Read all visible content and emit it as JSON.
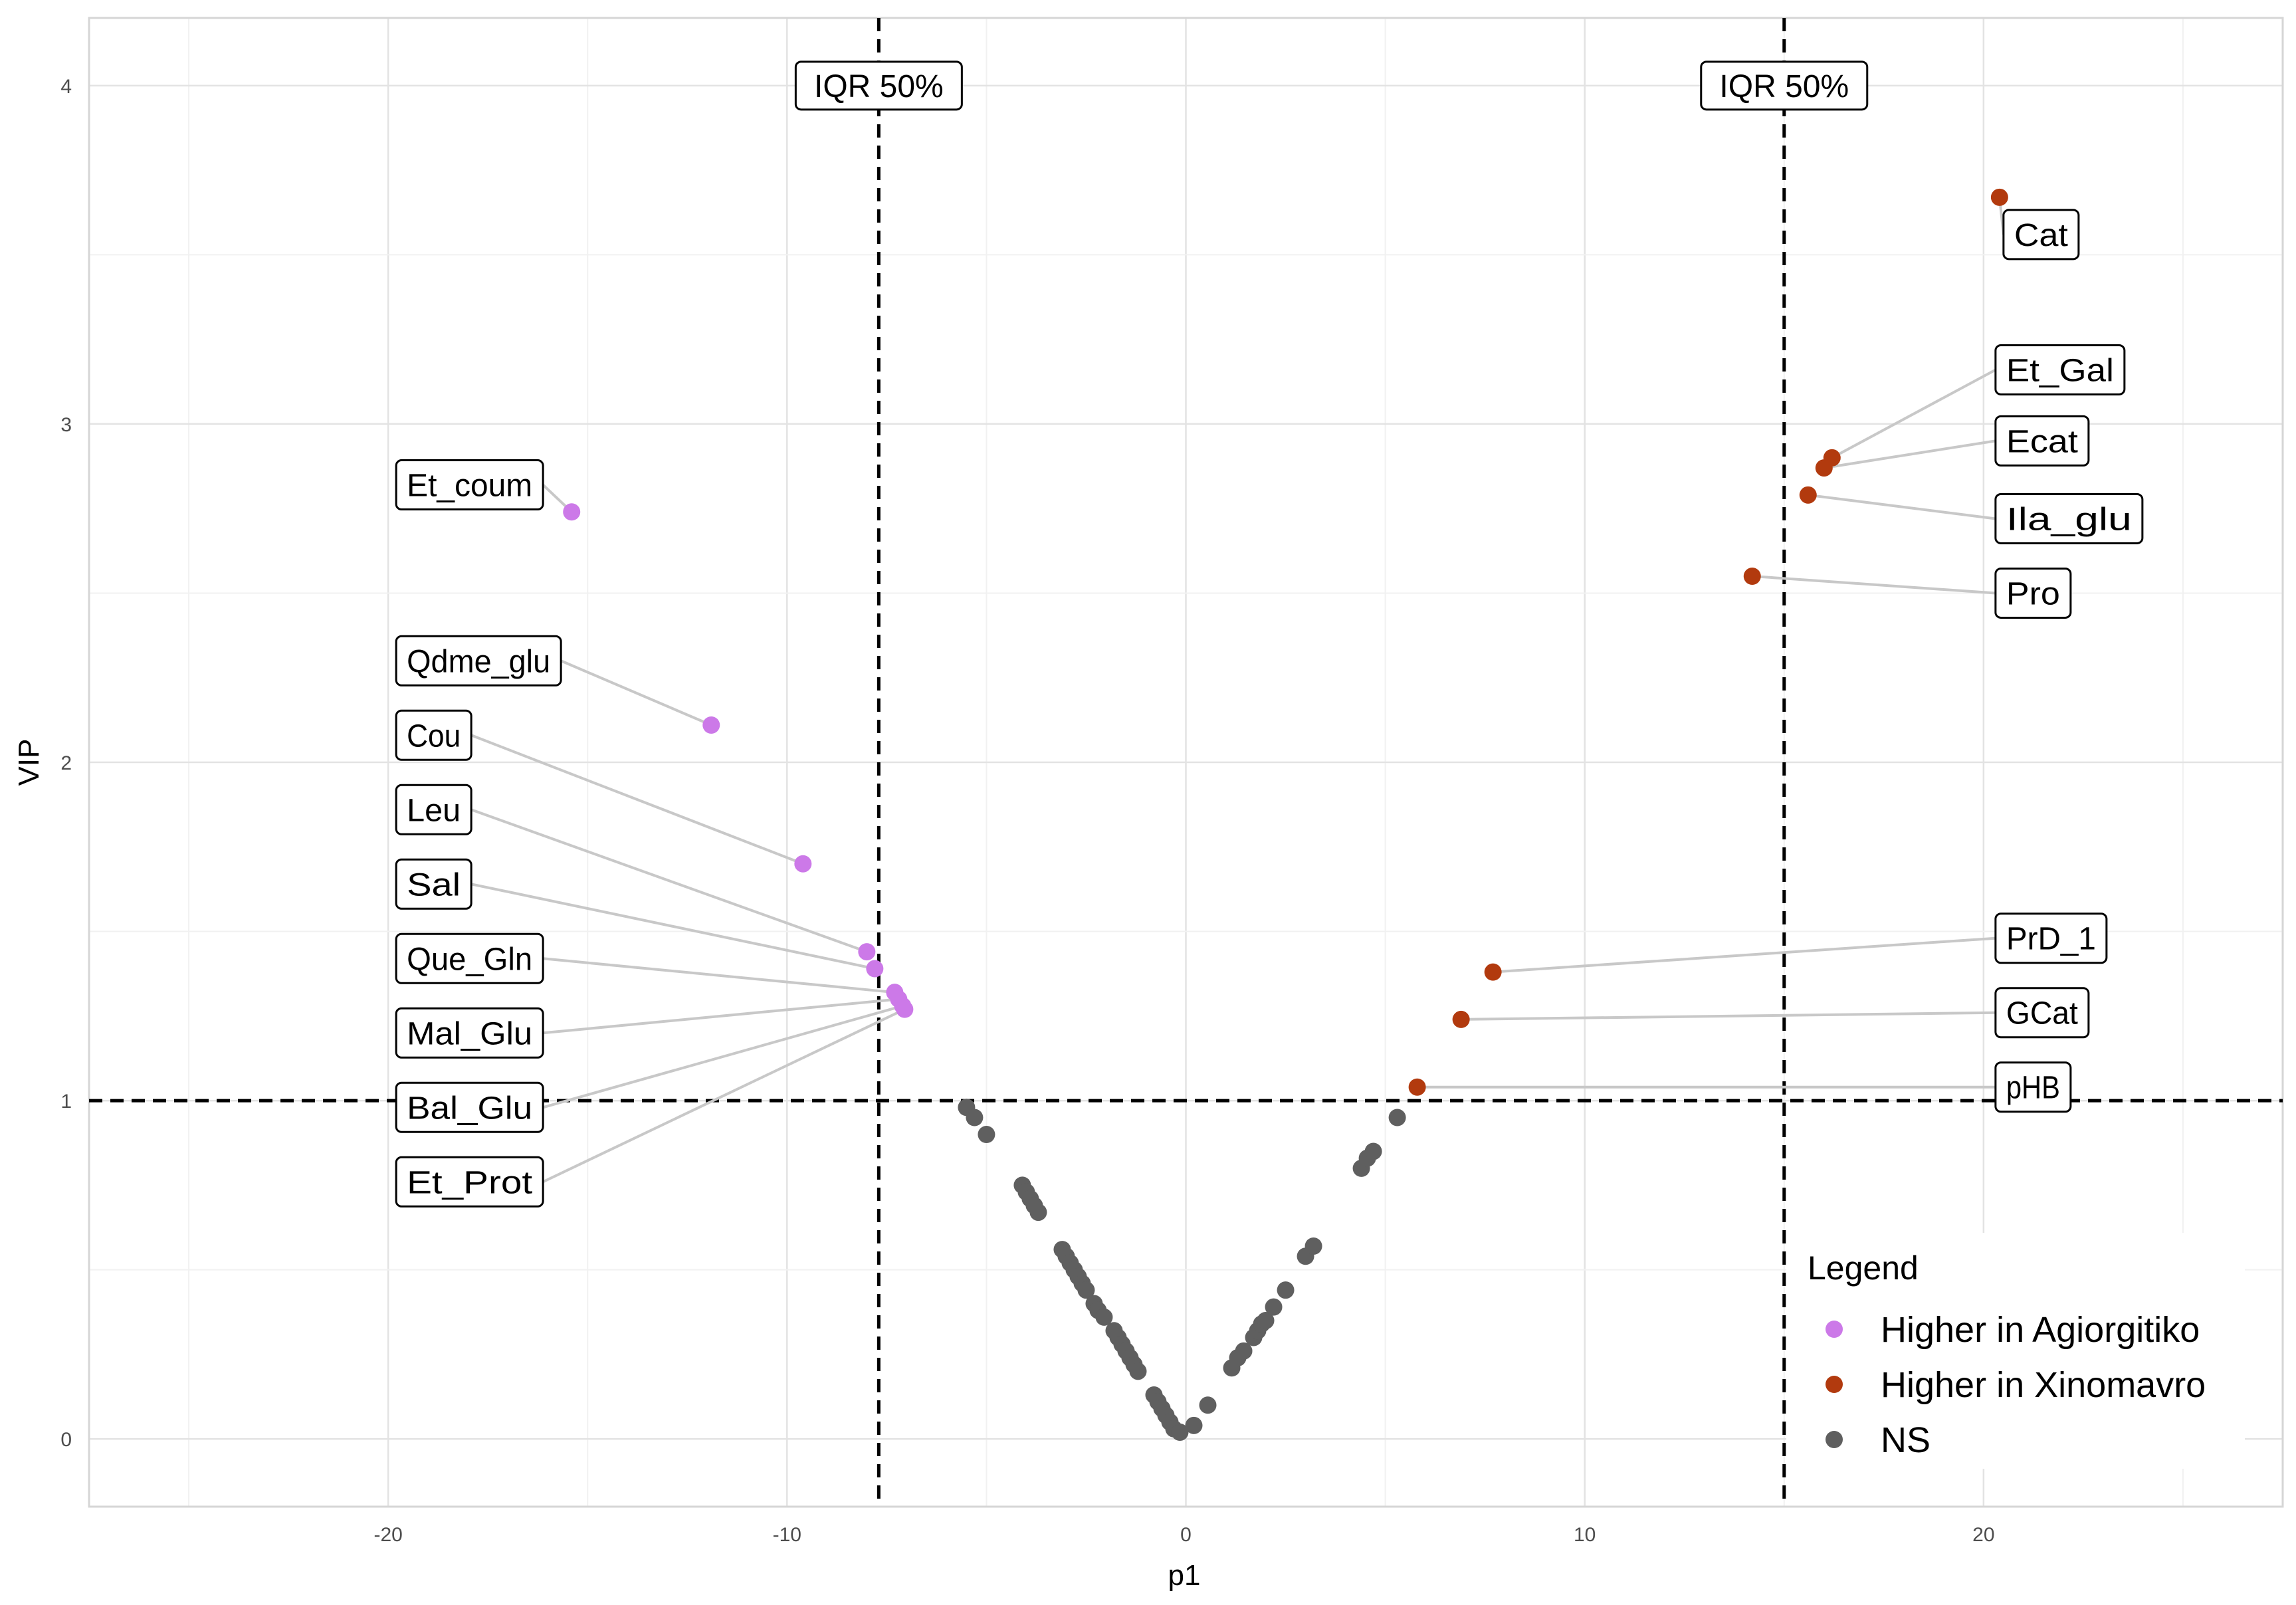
{
  "chart_data": {
    "type": "scatter",
    "title": "",
    "xlabel": "p1",
    "ylabel": "VIP",
    "xlim": [
      -27.5,
      27.5
    ],
    "ylim": [
      -0.2,
      4.2
    ],
    "x_ticks": [
      -20,
      -10,
      0,
      10,
      20
    ],
    "y_ticks": [
      0,
      1,
      2,
      3,
      4
    ],
    "grid": true,
    "thresholds": {
      "vip": 1,
      "iqr_low": -7.7,
      "iqr_high": 15.0,
      "iqr_label": "IQR 50%"
    },
    "legend": {
      "title": "Legend",
      "position": "bottom-right",
      "entries": [
        {
          "name": "Higher in Agiorgitiko",
          "color": "#CC79E8"
        },
        {
          "name": "Higher in Xinomavro",
          "color": "#B23A0E"
        },
        {
          "name": "NS",
          "color": "#5F5F5F"
        }
      ]
    },
    "series": [
      {
        "name": "Higher in Agiorgitiko",
        "color": "#CC79E8",
        "points": [
          {
            "label": "Et_coum",
            "x": -15.4,
            "y": 2.74,
            "lx": -19.8,
            "ly": 2.82
          },
          {
            "label": "Qdme_glu",
            "x": -11.9,
            "y": 2.11,
            "lx": -19.8,
            "ly": 2.3
          },
          {
            "label": "Cou",
            "x": -9.6,
            "y": 1.7,
            "lx": -19.8,
            "ly": 2.08
          },
          {
            "label": "Leu",
            "x": -8.0,
            "y": 1.44,
            "lx": -19.8,
            "ly": 1.86
          },
          {
            "label": "Sal",
            "x": -7.8,
            "y": 1.39,
            "lx": -19.8,
            "ly": 1.64
          },
          {
            "label": "Que_Gln",
            "x": -7.3,
            "y": 1.32,
            "lx": -19.8,
            "ly": 1.42
          },
          {
            "label": "Mal_Glu",
            "x": -7.2,
            "y": 1.3,
            "lx": -19.8,
            "ly": 1.2
          },
          {
            "label": "Bal_Glu",
            "x": -7.1,
            "y": 1.28,
            "lx": -19.8,
            "ly": 0.98
          },
          {
            "label": "Et_Prot",
            "x": -7.05,
            "y": 1.27,
            "lx": -19.8,
            "ly": 0.76
          }
        ]
      },
      {
        "name": "Higher in Xinomavro",
        "color": "#B23A0E",
        "points": [
          {
            "label": "Cat",
            "x": 20.4,
            "y": 3.67,
            "lx": 20.5,
            "ly": 3.56
          },
          {
            "label": "Et_Gal",
            "x": 16.2,
            "y": 2.9,
            "lx": 20.3,
            "ly": 3.16
          },
          {
            "label": "Ecat",
            "x": 16.0,
            "y": 2.87,
            "lx": 20.3,
            "ly": 2.95
          },
          {
            "label": "Ila_glu",
            "x": 15.6,
            "y": 2.79,
            "lx": 20.3,
            "ly": 2.72
          },
          {
            "label": "Pro",
            "x": 14.2,
            "y": 2.55,
            "lx": 20.3,
            "ly": 2.5
          },
          {
            "label": "PrD_1",
            "x": 7.7,
            "y": 1.38,
            "lx": 20.3,
            "ly": 1.48
          },
          {
            "label": "GCat",
            "x": 6.9,
            "y": 1.24,
            "lx": 20.3,
            "ly": 1.26
          },
          {
            "label": "pHB",
            "x": 5.8,
            "y": 1.04,
            "lx": 20.3,
            "ly": 1.04
          }
        ]
      },
      {
        "name": "NS",
        "color": "#5F5F5F",
        "points": [
          {
            "x": -5.5,
            "y": 0.98
          },
          {
            "x": -5.3,
            "y": 0.95
          },
          {
            "x": -5.0,
            "y": 0.9
          },
          {
            "x": -4.1,
            "y": 0.75
          },
          {
            "x": -4.0,
            "y": 0.73
          },
          {
            "x": -3.9,
            "y": 0.71
          },
          {
            "x": -3.8,
            "y": 0.69
          },
          {
            "x": -3.7,
            "y": 0.67
          },
          {
            "x": -3.1,
            "y": 0.56
          },
          {
            "x": -3.0,
            "y": 0.54
          },
          {
            "x": -2.9,
            "y": 0.52
          },
          {
            "x": -2.8,
            "y": 0.5
          },
          {
            "x": -2.7,
            "y": 0.48
          },
          {
            "x": -2.6,
            "y": 0.46
          },
          {
            "x": -2.5,
            "y": 0.44
          },
          {
            "x": -2.3,
            "y": 0.4
          },
          {
            "x": -2.2,
            "y": 0.38
          },
          {
            "x": -2.05,
            "y": 0.36
          },
          {
            "x": -1.8,
            "y": 0.32
          },
          {
            "x": -1.7,
            "y": 0.3
          },
          {
            "x": -1.6,
            "y": 0.28
          },
          {
            "x": -1.5,
            "y": 0.26
          },
          {
            "x": -1.4,
            "y": 0.24
          },
          {
            "x": -1.3,
            "y": 0.22
          },
          {
            "x": -1.2,
            "y": 0.2
          },
          {
            "x": -0.8,
            "y": 0.13
          },
          {
            "x": -0.7,
            "y": 0.11
          },
          {
            "x": -0.6,
            "y": 0.09
          },
          {
            "x": -0.5,
            "y": 0.07
          },
          {
            "x": -0.4,
            "y": 0.05
          },
          {
            "x": -0.3,
            "y": 0.03
          },
          {
            "x": -0.15,
            "y": 0.02
          },
          {
            "x": 0.2,
            "y": 0.04
          },
          {
            "x": 0.55,
            "y": 0.1
          },
          {
            "x": 1.15,
            "y": 0.21
          },
          {
            "x": 1.3,
            "y": 0.24
          },
          {
            "x": 1.45,
            "y": 0.26
          },
          {
            "x": 1.7,
            "y": 0.3
          },
          {
            "x": 1.8,
            "y": 0.32
          },
          {
            "x": 1.9,
            "y": 0.34
          },
          {
            "x": 2.0,
            "y": 0.35
          },
          {
            "x": 2.2,
            "y": 0.39
          },
          {
            "x": 2.5,
            "y": 0.44
          },
          {
            "x": 3.0,
            "y": 0.54
          },
          {
            "x": 3.2,
            "y": 0.57
          },
          {
            "x": 4.4,
            "y": 0.8
          },
          {
            "x": 4.55,
            "y": 0.83
          },
          {
            "x": 4.7,
            "y": 0.85
          },
          {
            "x": 5.3,
            "y": 0.95
          }
        ]
      }
    ]
  }
}
